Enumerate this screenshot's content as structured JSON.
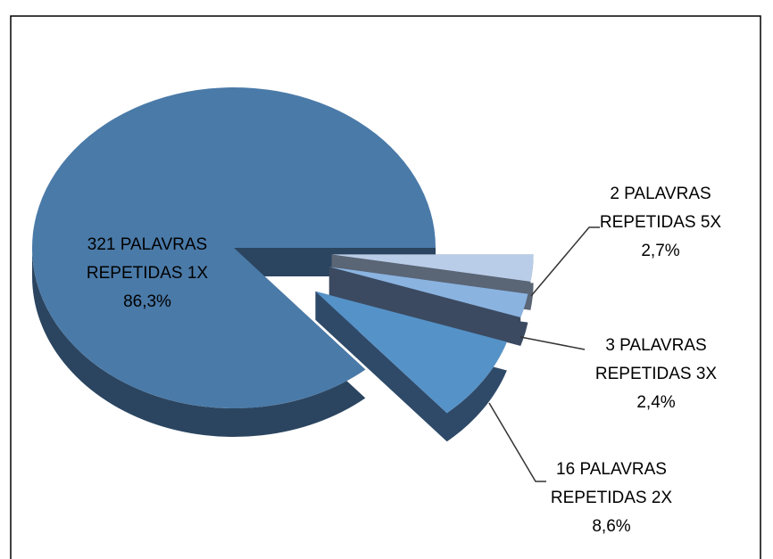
{
  "chart_data": {
    "type": "pie",
    "three_d": true,
    "labels": [
      [
        "2 PALAVRAS",
        "REPETIDAS 5X"
      ],
      [
        "3 PALAVRAS",
        "REPETIDAS 3X"
      ],
      [
        "16 PALAVRAS",
        "REPETIDAS 2X"
      ],
      [
        "321 PALAVRAS",
        "REPETIDAS 1X"
      ]
    ],
    "values": [
      2.7,
      2.4,
      8.6,
      86.3
    ],
    "value_labels": [
      "2,7%",
      "2,4%",
      "8,6%",
      "86,3%"
    ],
    "colors": [
      "#b9cde8",
      "#8ab3e0",
      "#5592c8",
      "#4a7aa8"
    ],
    "side_colors": [
      "#5a6575",
      "#3b4a60",
      "#2f4a68",
      "#2b4560"
    ],
    "exploded": [
      true,
      true,
      true,
      false
    ]
  }
}
